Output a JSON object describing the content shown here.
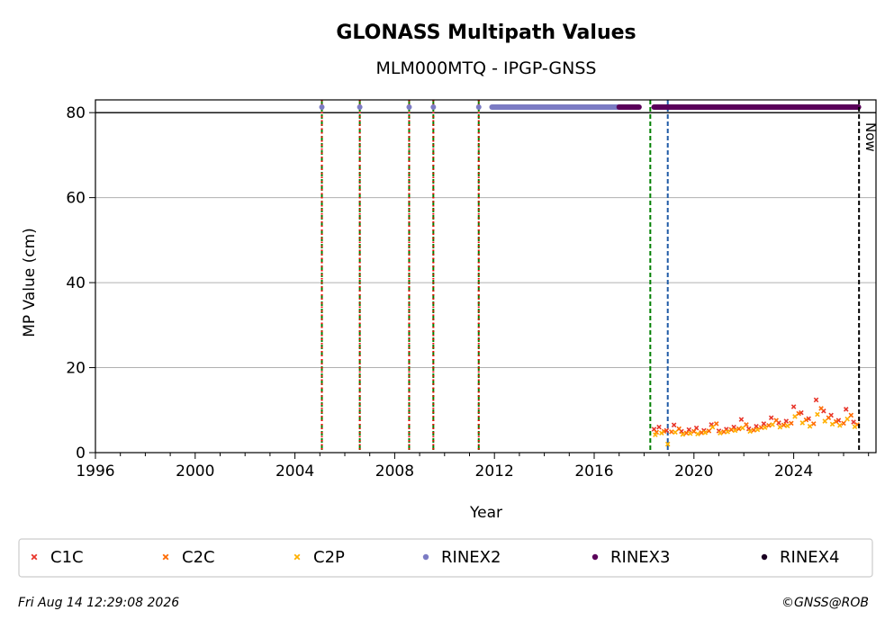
{
  "chart_data": {
    "type": "scatter",
    "title": "GLONASS Multipath Values",
    "subtitle": "MLM000MTQ - IPGP-GNSS",
    "xlabel": "Year",
    "ylabel": "MP Value (cm)",
    "xlim": [
      1996,
      2027.3
    ],
    "ylim": [
      0,
      83
    ],
    "x_ticks": [
      1996,
      2000,
      2004,
      2008,
      2012,
      2016,
      2020,
      2024
    ],
    "y_ticks": [
      0,
      20,
      40,
      60,
      80
    ],
    "grid": "horizontal",
    "reference_line_y": 80,
    "now_label": "Now",
    "now_x": 2026.62,
    "vertical_lines": [
      {
        "x": 2005.08,
        "color": "#008000",
        "style": "dashed"
      },
      {
        "x": 2005.08,
        "color": "#ff0000",
        "style": "dotted"
      },
      {
        "x": 2006.6,
        "color": "#008000",
        "style": "dashed"
      },
      {
        "x": 2006.6,
        "color": "#ff0000",
        "style": "dotted"
      },
      {
        "x": 2008.58,
        "color": "#008000",
        "style": "dashed"
      },
      {
        "x": 2008.58,
        "color": "#ff0000",
        "style": "dotted"
      },
      {
        "x": 2009.55,
        "color": "#008000",
        "style": "dashed"
      },
      {
        "x": 2009.55,
        "color": "#ff0000",
        "style": "dotted"
      },
      {
        "x": 2011.37,
        "color": "#008000",
        "style": "dashed"
      },
      {
        "x": 2011.37,
        "color": "#ff0000",
        "style": "dotted"
      },
      {
        "x": 2018.25,
        "color": "#008000",
        "style": "dashed"
      },
      {
        "x": 2018.95,
        "color": "#1f5aa6",
        "style": "dashed"
      }
    ],
    "rinex_markers": [
      {
        "name": "RINEX2",
        "color": "#7b7bc4",
        "y": 81.3,
        "points": [
          2005.08,
          2006.6,
          2008.58,
          2009.55,
          2011.37
        ],
        "ranges": [
          [
            2011.9,
            2017.0
          ]
        ]
      },
      {
        "name": "RINEX3",
        "color": "#5a005a",
        "y": 81.3,
        "points": [],
        "ranges": [
          [
            2017.0,
            2017.8
          ],
          [
            2018.4,
            2026.6
          ]
        ]
      }
    ],
    "series": [
      {
        "name": "C1C",
        "color": "#e8352a",
        "marker": "x",
        "x": [
          2018.4,
          2018.6,
          2018.9,
          2019.2,
          2019.5,
          2019.8,
          2020.1,
          2020.4,
          2020.7,
          2021.0,
          2021.3,
          2021.6,
          2021.9,
          2022.2,
          2022.5,
          2022.8,
          2023.1,
          2023.4,
          2023.7,
          2024.0,
          2024.3,
          2024.6,
          2024.9,
          2025.2,
          2025.5,
          2025.8,
          2026.1,
          2026.4
        ],
        "values": [
          5.5,
          6.0,
          5.2,
          6.5,
          5.0,
          5.4,
          5.8,
          5.2,
          6.6,
          5.1,
          5.5,
          6.0,
          7.8,
          5.6,
          6.2,
          6.8,
          8.2,
          7.0,
          7.4,
          10.8,
          9.4,
          8.0,
          12.4,
          9.8,
          8.8,
          7.6,
          10.2,
          7.2
        ]
      },
      {
        "name": "C2C",
        "color": "#ff6a00",
        "marker": "x",
        "x": [
          2018.5,
          2018.8,
          2019.1,
          2019.4,
          2019.7,
          2020.0,
          2020.3,
          2020.6,
          2020.9,
          2021.2,
          2021.5,
          2021.8,
          2022.1,
          2022.4,
          2022.7,
          2023.0,
          2023.3,
          2023.6,
          2023.9,
          2024.2,
          2024.5,
          2024.8,
          2025.1,
          2025.4,
          2025.7,
          2026.0,
          2026.3,
          2026.55
        ],
        "values": [
          4.8,
          5.0,
          4.9,
          5.6,
          4.6,
          5.0,
          4.7,
          5.1,
          6.8,
          4.9,
          5.4,
          5.6,
          6.6,
          5.3,
          5.9,
          6.4,
          7.6,
          6.5,
          6.9,
          9.2,
          7.7,
          6.8,
          10.4,
          8.2,
          7.3,
          6.9,
          8.8,
          6.6
        ]
      },
      {
        "name": "C2P",
        "color": "#ffb000",
        "marker": "x",
        "x": [
          2018.45,
          2018.7,
          2018.95,
          2019.25,
          2019.55,
          2019.85,
          2020.15,
          2020.45,
          2020.75,
          2021.05,
          2021.35,
          2021.65,
          2021.95,
          2022.25,
          2022.55,
          2022.85,
          2023.15,
          2023.45,
          2023.75,
          2024.05,
          2024.35,
          2024.65,
          2024.95,
          2025.25,
          2025.55,
          2025.85,
          2026.15,
          2026.45
        ],
        "values": [
          4.2,
          4.6,
          2.0,
          4.8,
          4.3,
          4.5,
          4.4,
          4.7,
          6.0,
          4.6,
          4.9,
          5.2,
          5.8,
          5.0,
          5.4,
          5.9,
          6.6,
          6.0,
          6.3,
          8.5,
          7.0,
          6.2,
          9.0,
          7.4,
          6.7,
          6.4,
          7.9,
          6.1
        ]
      }
    ],
    "legend": {
      "placement": "bottom",
      "entries": [
        {
          "label": "C1C",
          "color": "#e8352a",
          "marker": "x"
        },
        {
          "label": "C2C",
          "color": "#ff6a00",
          "marker": "x"
        },
        {
          "label": "C2P",
          "color": "#ffb000",
          "marker": "x"
        },
        {
          "label": "RINEX2",
          "color": "#7b7bc4",
          "marker": "dot"
        },
        {
          "label": "RINEX3",
          "color": "#5a005a",
          "marker": "dot"
        },
        {
          "label": "RINEX4",
          "color": "#1a0022",
          "marker": "dot"
        }
      ]
    }
  },
  "footer": {
    "timestamp": "Fri Aug 14 12:29:08 2026",
    "copyright": "©GNSS@ROB"
  }
}
